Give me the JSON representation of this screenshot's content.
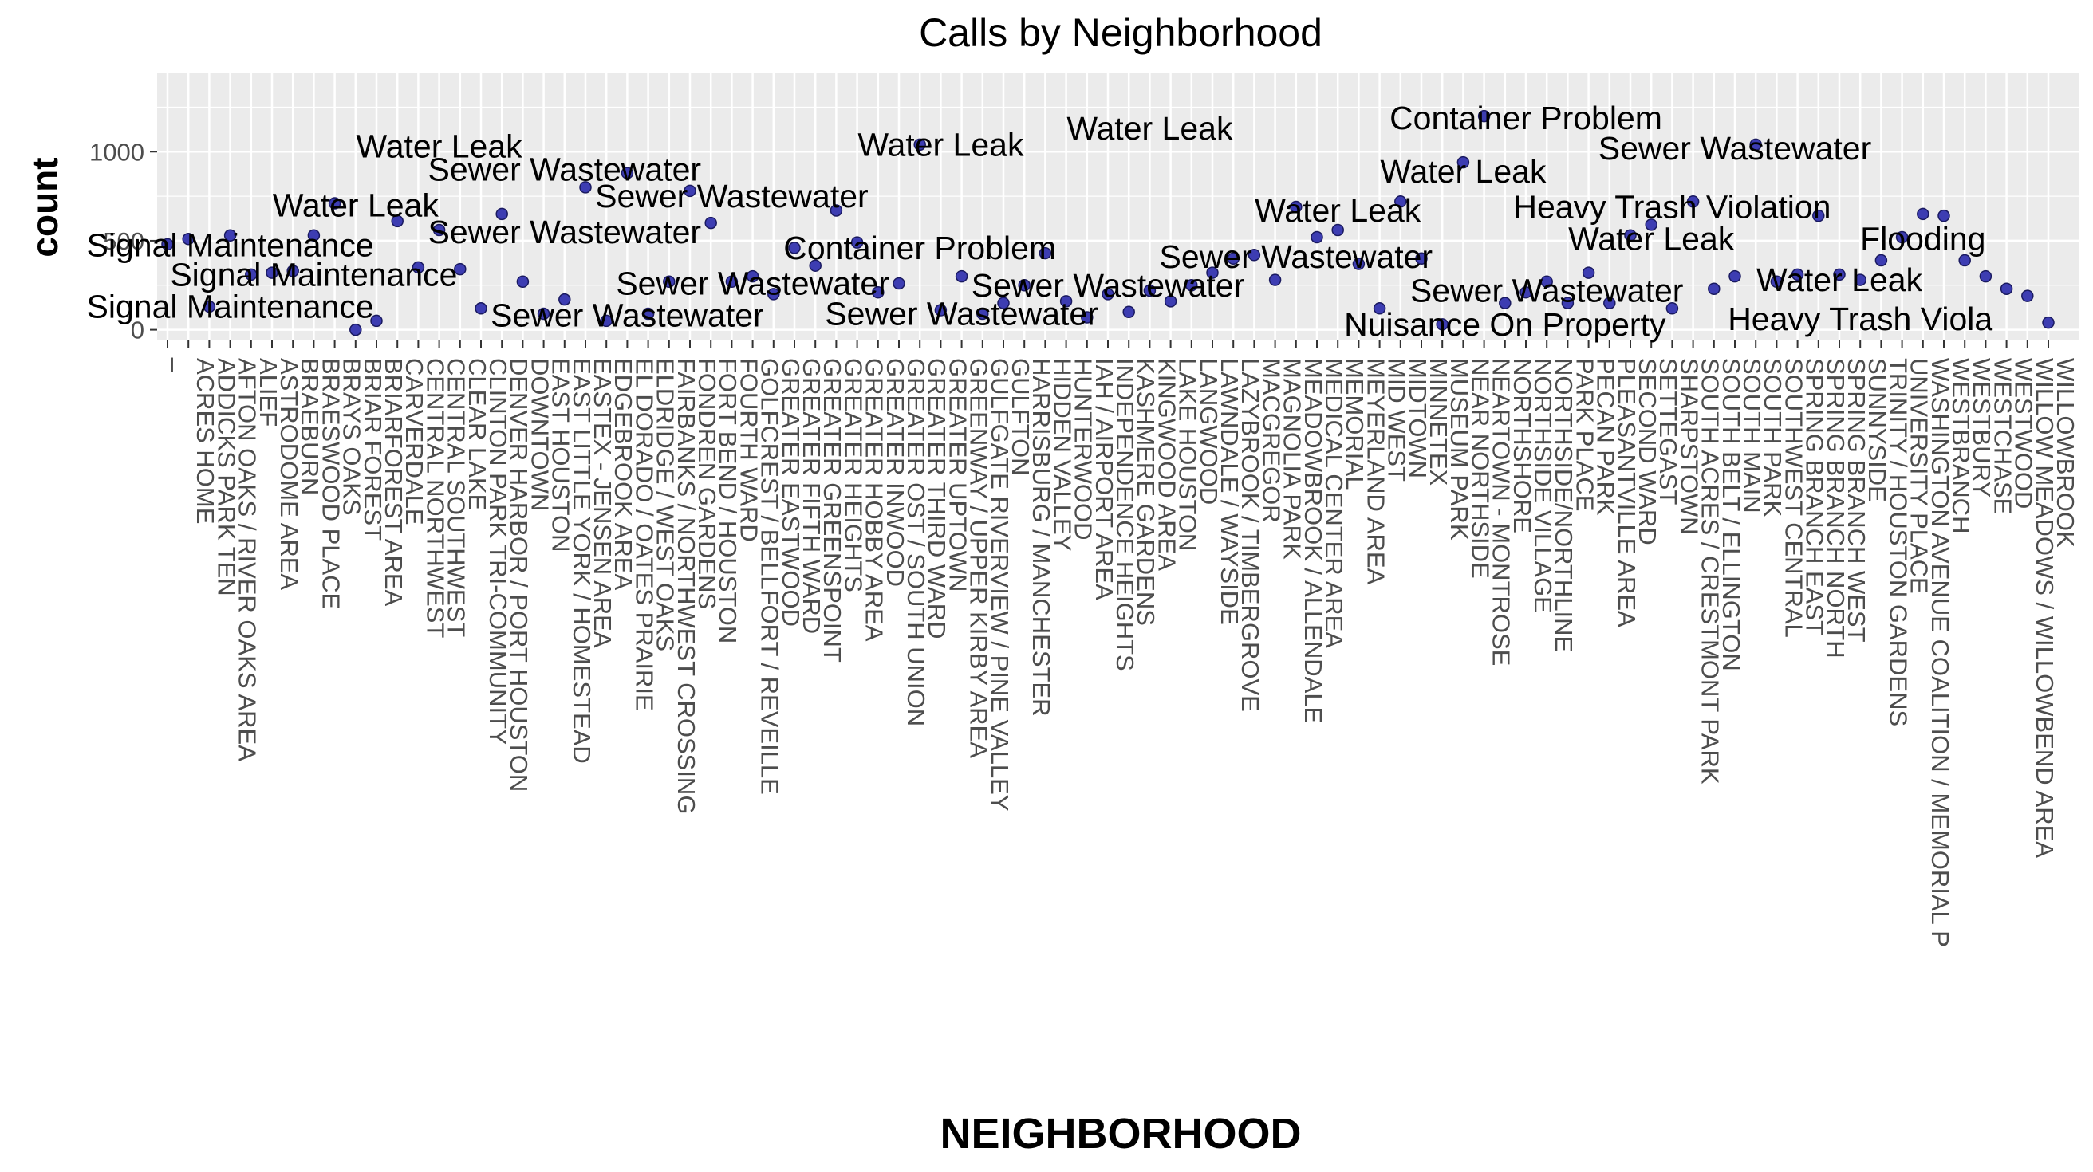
{
  "chart_data": {
    "type": "scatter",
    "title": "Calls by Neighborhood",
    "xlabel": "NEIGHBORHOOD",
    "ylabel": "count",
    "ylim": [
      -60,
      1440
    ],
    "yticks": [
      0,
      500,
      1000
    ],
    "grid": true,
    "legend": "none",
    "point_color": "#3d3db2",
    "panel_color": "#ebebeb",
    "categories": [
      "_",
      "ACRES HOME",
      "ADDICKS PARK TEN",
      "AFTON OAKS / RIVER OAKS AREA",
      "ALIEF",
      "ASTRODOME AREA",
      "BRAEBURN",
      "BRAESWOOD PLACE",
      "BRAYS OAKS",
      "BRIAR FOREST",
      "BRIARFOREST AREA",
      "CARVERDALE",
      "CENTRAL NORTHWEST",
      "CENTRAL SOUTHWEST",
      "CLEAR LAKE",
      "CLINTON PARK TRI-COMMUNITY",
      "DENVER HARBOR / PORT HOUSTON",
      "DOWNTOWN",
      "EAST HOUSTON",
      "EAST LITTLE YORK / HOMESTEAD",
      "EASTEX - JENSEN AREA",
      "EDGEBROOK AREA",
      "EL DORADO / OATES PRAIRIE",
      "ELDRIDGE / WEST OAKS",
      "FAIRBANKS / NORTHWEST CROSSING",
      "FONDREN GARDENS",
      "FORT BEND / HOUSTON",
      "FOURTH WARD",
      "GOLFCREST / BELLFORT / REVEILLE",
      "GREATER EASTWOOD",
      "GREATER FIFTH WARD",
      "GREATER GREENSPOINT",
      "GREATER HEIGHTS",
      "GREATER HOBBY AREA",
      "GREATER INWOOD",
      "GREATER OST / SOUTH UNION",
      "GREATER THIRD WARD",
      "GREATER UPTOWN",
      "GREENWAY / UPPER KIRBY AREA",
      "GULFGATE RIVERVIEW / PINE VALLEY",
      "GULFTON",
      "HARRISBURG / MANCHESTER",
      "HIDDEN VALLEY",
      "HUNTERWOOD",
      "IAH / AIRPORT AREA",
      "INDEPENDENCE HEIGHTS",
      "KASHMERE GARDENS",
      "KINGWOOD AREA",
      "LAKE HOUSTON",
      "LANGWOOD",
      "LAWNDALE / WAYSIDE",
      "LAZYBROOK / TIMBERGROVE",
      "MACGREGOR",
      "MAGNOLIA PARK",
      "MEADOWBROOK / ALLENDALE",
      "MEDICAL CENTER AREA",
      "MEMORIAL",
      "MEYERLAND AREA",
      "MID WEST",
      "MIDTOWN",
      "MINNETEX",
      "MUSEUM PARK",
      "NEAR NORTHSIDE",
      "NEARTOWN - MONTROSE",
      "NORTHSHORE",
      "NORTHSIDE VILLAGE",
      "NORTHSIDE/NORTHLINE",
      "PARK PLACE",
      "PECAN PARK",
      "PLEASANTVILLE AREA",
      "SECOND WARD",
      "SETTEGAST",
      "SHARPSTOWN",
      "SOUTH ACRES / CRESTMONT PARK",
      "SOUTH BELT / ELLINGTON",
      "SOUTH MAIN",
      "SOUTH PARK",
      "SOUTHWEST CENTRAL",
      "SPRING BRANCH EAST",
      "SPRING BRANCH NORTH",
      "SPRING BRANCH WEST",
      "SUNNYSIDE",
      "TRINITY / HOUSTON GARDENS",
      "UNIVERSITY PLACE",
      "WASHINGTON AVENUE COALITION / MEMORIAL P",
      "WESTBRANCH",
      "WESTBURY",
      "WESTCHASE",
      "WESTWOOD",
      "WILLOW MEADOWS / WILLOWBEND AREA",
      "WILLOWBROOK"
    ],
    "values": [
      480,
      510,
      130,
      530,
      310,
      320,
      330,
      530,
      710,
      0,
      50,
      610,
      350,
      560,
      340,
      120,
      650,
      270,
      90,
      170,
      800,
      50,
      880,
      90,
      270,
      780,
      600,
      270,
      300,
      200,
      460,
      360,
      670,
      490,
      210,
      260,
      1040,
      110,
      300,
      90,
      150,
      250,
      430,
      160,
      70,
      200,
      100,
      220,
      160,
      250,
      320,
      400,
      420,
      280,
      690,
      520,
      560,
      370,
      120,
      720,
      400,
      30,
      940,
      1200,
      150,
      210,
      270,
      150,
      320,
      150,
      530,
      590,
      120,
      720,
      230,
      300,
      1040,
      270,
      310,
      640,
      310,
      280,
      390,
      520,
      650,
      640,
      390,
      300,
      230,
      190,
      40
    ],
    "labels": [
      {
        "text": "Water Leak",
        "x": 13,
        "y": 1030
      },
      {
        "text": "Sewer Wastewater",
        "x": 19,
        "y": 900
      },
      {
        "text": "Water Leak",
        "x": 9,
        "y": 700
      },
      {
        "text": "Signal Maintenance",
        "x": 3,
        "y": 475
      },
      {
        "text": "Sewer Wastewater",
        "x": 19,
        "y": 550
      },
      {
        "text": "Signal Maintenance",
        "x": 7,
        "y": 310
      },
      {
        "text": "Signal Maintenance",
        "x": 3,
        "y": 130
      },
      {
        "text": "Sewer Wastewater",
        "x": 22,
        "y": 80
      },
      {
        "text": "Sewer Wastewater",
        "x": 27,
        "y": 750
      },
      {
        "text": "Sewer Wastewater",
        "x": 28,
        "y": 260
      },
      {
        "text": "Water Leak",
        "x": 37,
        "y": 1040
      },
      {
        "text": "Container Problem",
        "x": 36,
        "y": 460
      },
      {
        "text": "Sewer Wastewater",
        "x": 38,
        "y": 90
      },
      {
        "text": "Water Leak",
        "x": 47,
        "y": 1130
      },
      {
        "text": "Sewer Wastewater",
        "x": 45,
        "y": 250
      },
      {
        "text": "Sewer Wastewater",
        "x": 54,
        "y": 410
      },
      {
        "text": "Water Leak",
        "x": 56,
        "y": 670
      },
      {
        "text": "Water Leak",
        "x": 62,
        "y": 890
      },
      {
        "text": "Container Problem",
        "x": 65,
        "y": 1190
      },
      {
        "text": "Sewer Wastewater",
        "x": 66,
        "y": 220
      },
      {
        "text": "Nuisance On Property",
        "x": 64,
        "y": 30
      },
      {
        "text": "Sewer Wastewater",
        "x": 75,
        "y": 1020
      },
      {
        "text": "Heavy Trash Violation",
        "x": 72,
        "y": 690
      },
      {
        "text": "Water Leak",
        "x": 71,
        "y": 510
      },
      {
        "text": "Flooding",
        "x": 84,
        "y": 510
      },
      {
        "text": "Water Leak",
        "x": 80,
        "y": 280
      },
      {
        "text": "Heavy Trash Viola",
        "x": 81,
        "y": 60
      }
    ]
  }
}
